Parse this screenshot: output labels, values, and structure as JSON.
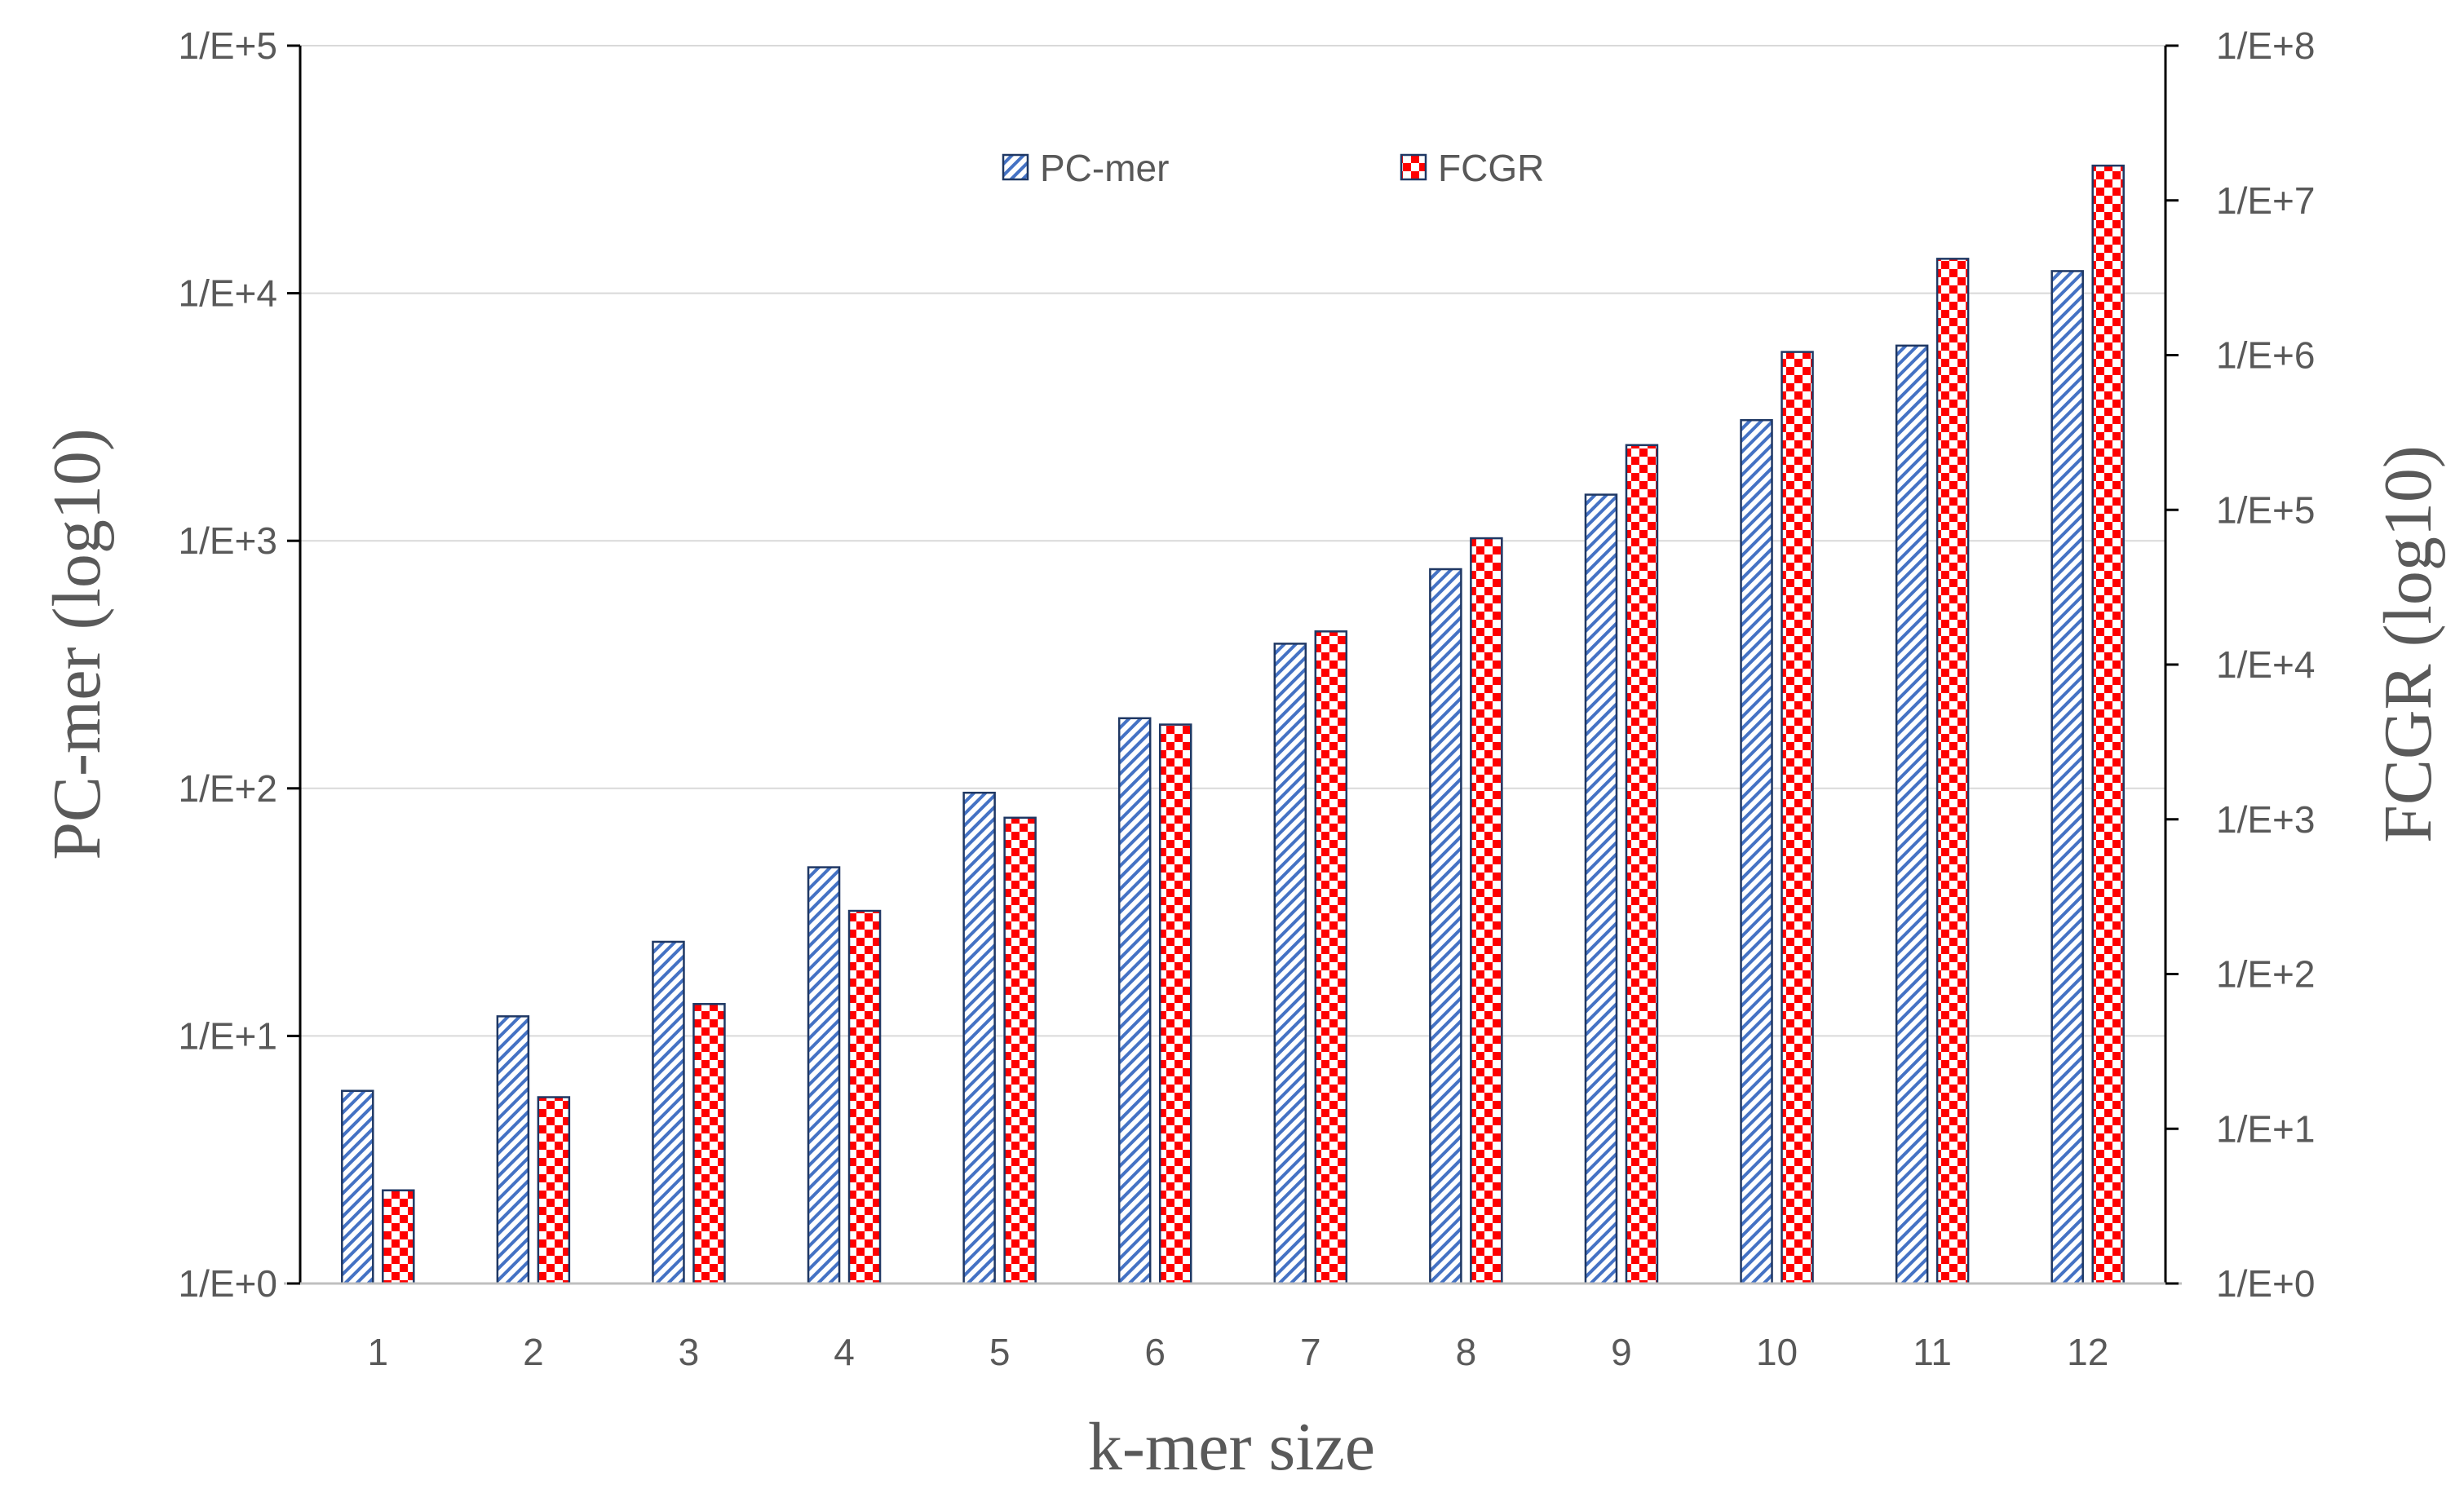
{
  "chart_data": {
    "type": "bar",
    "categories": [
      "1",
      "2",
      "3",
      "4",
      "5",
      "6",
      "7",
      "8",
      "9",
      "10",
      "11",
      "12"
    ],
    "series": [
      {
        "name": "PC-mer",
        "axis": "left",
        "values": [
          6,
          12,
          24,
          48,
          96,
          192,
          384,
          768,
          1536,
          3072,
          6144,
          12288
        ]
      },
      {
        "name": "FCGR",
        "axis": "right",
        "values": [
          4,
          16,
          64,
          256,
          1024,
          4096,
          16384,
          65536,
          262144,
          1048576,
          4194304,
          16777216
        ]
      }
    ],
    "xlabel": "k-mer size",
    "ylabel_left": "PC-mer (log10)",
    "ylabel_right": "FCGR (log10)",
    "y_left": {
      "scale": "log10",
      "range": [
        1,
        100000
      ],
      "tick_labels": [
        "1/E+0",
        "1/E+1",
        "1/E+2",
        "1/E+3",
        "1/E+4",
        "1/E+5"
      ]
    },
    "y_right": {
      "scale": "log10",
      "range": [
        1,
        100000000
      ],
      "tick_labels": [
        "1/E+0",
        "1/E+1",
        "1/E+2",
        "1/E+3",
        "1/E+4",
        "1/E+5",
        "1/E+6",
        "1/E+7",
        "1/E+8"
      ]
    },
    "grid": true,
    "legend_position": "top-center",
    "colors": {
      "pcmer_stripe": "#4472c4",
      "pcmer_edge": "#1f3864",
      "fcgr_check": "#ff0000",
      "fcgr_edge": "#1f3864",
      "text": "#595959",
      "grid": "#d9d9d9"
    }
  }
}
